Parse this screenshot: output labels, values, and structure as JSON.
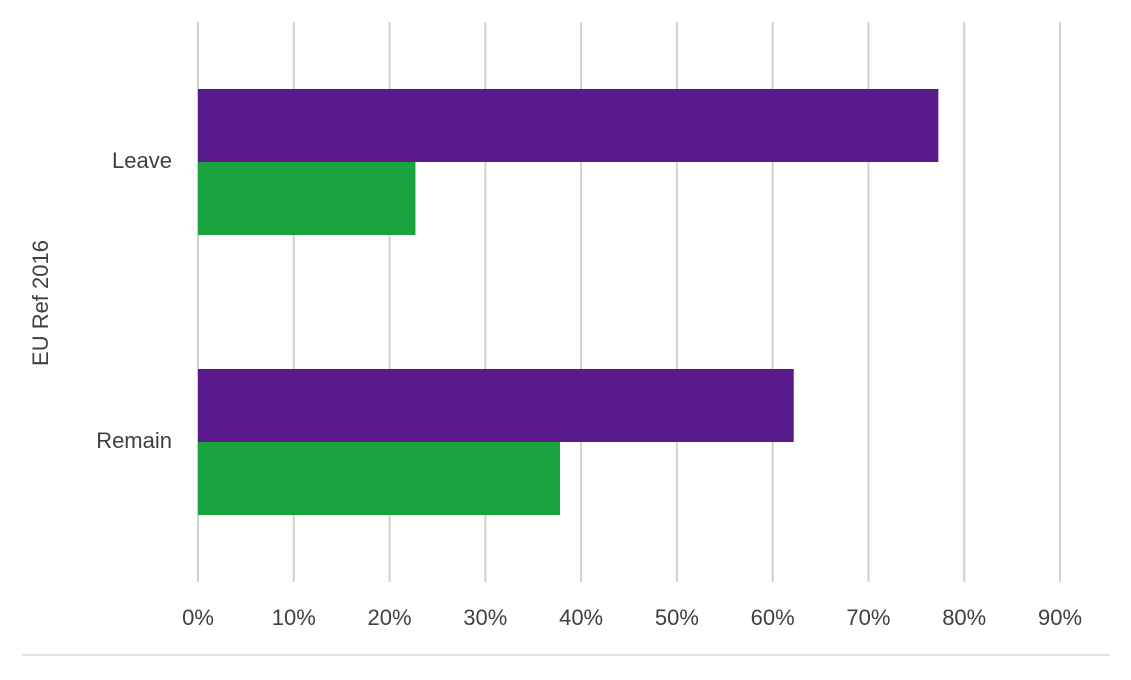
{
  "chart_data": {
    "type": "hbar",
    "y_label": "EU Ref 2016",
    "categories": [
      "Leave",
      "Remain"
    ],
    "series": [
      {
        "color": "#5b1a8b",
        "values": [
          77.3,
          62.2
        ]
      },
      {
        "color": "#19a33f",
        "values": [
          22.7,
          37.8
        ]
      }
    ],
    "xlim": [
      0,
      90
    ],
    "xticks": [
      {
        "value": 0,
        "label": "0%"
      },
      {
        "value": 10,
        "label": "10%"
      },
      {
        "value": 20,
        "label": "20%"
      },
      {
        "value": 30,
        "label": "30%"
      },
      {
        "value": 40,
        "label": "40%"
      },
      {
        "value": 50,
        "label": "50%"
      },
      {
        "value": 60,
        "label": "60%"
      },
      {
        "value": 70,
        "label": "70%"
      },
      {
        "value": 80,
        "label": "80%"
      },
      {
        "value": 90,
        "label": "90%"
      }
    ],
    "grid": true
  }
}
